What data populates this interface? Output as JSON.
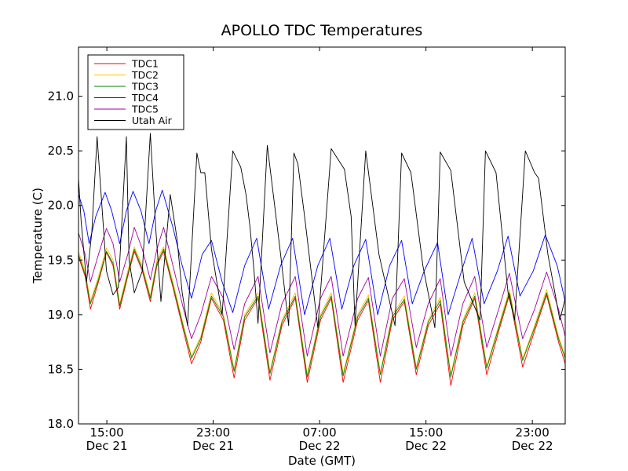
{
  "chart_data": {
    "type": "line",
    "title": "APOLLO TDC Temperatures",
    "xlabel": "Date (GMT)",
    "ylabel": "Temperature (C)",
    "ylim": [
      18.0,
      21.45
    ],
    "xlim_hours": [
      0,
      36.6
    ],
    "x_start": "Dec 21 12:52 GMT (approx.)",
    "grid": false,
    "legend_loc": "upper-left",
    "y_ticks": [
      {
        "value": 18.0,
        "label": "18.0"
      },
      {
        "value": 18.5,
        "label": "18.5"
      },
      {
        "value": 19.0,
        "label": "19.0"
      },
      {
        "value": 19.5,
        "label": "19.5"
      },
      {
        "value": 20.0,
        "label": "20.0"
      },
      {
        "value": 20.5,
        "label": "20.5"
      },
      {
        "value": 21.0,
        "label": "21.0"
      }
    ],
    "x_ticks": [
      {
        "hours": 2.13,
        "time": "15:00",
        "date": "Dec 21"
      },
      {
        "hours": 10.13,
        "time": "23:00",
        "date": "Dec 21"
      },
      {
        "hours": 18.13,
        "time": "07:00",
        "date": "Dec 22"
      },
      {
        "hours": 26.13,
        "time": "15:00",
        "date": "Dec 22"
      },
      {
        "hours": 34.13,
        "time": "23:00",
        "date": "Dec 22"
      }
    ],
    "series": [
      {
        "name": "TDC1",
        "color": "#ff0000",
        "x": [
          0,
          0.5,
          0.9,
          1.5,
          2.1,
          2.6,
          3.1,
          3.7,
          4.2,
          4.8,
          5.4,
          5.9,
          6.4,
          7.1,
          7.9,
          8.5,
          9.2,
          10.0,
          10.9,
          11.7,
          12.5,
          13.5,
          14.4,
          15.3,
          16.3,
          17.2,
          18.2,
          19.0,
          19.9,
          21.0,
          21.8,
          22.7,
          23.6,
          24.5,
          25.4,
          26.3,
          27.2,
          28.0,
          28.9,
          29.8,
          30.7,
          31.6,
          32.4,
          33.4,
          34.3,
          35.2,
          36.1,
          36.6
        ],
        "y": [
          19.53,
          19.35,
          19.05,
          19.3,
          19.57,
          19.45,
          19.05,
          19.35,
          19.58,
          19.4,
          19.12,
          19.45,
          19.58,
          19.25,
          18.85,
          18.55,
          18.75,
          19.15,
          18.95,
          18.42,
          18.95,
          19.15,
          18.4,
          18.9,
          19.15,
          18.38,
          18.95,
          19.15,
          18.38,
          18.95,
          19.13,
          18.38,
          18.95,
          19.12,
          18.45,
          18.9,
          19.1,
          18.35,
          18.9,
          19.15,
          18.45,
          18.85,
          19.18,
          18.52,
          18.85,
          19.18,
          18.75,
          18.55
        ]
      },
      {
        "name": "TDC2",
        "color": "#ffc000",
        "x": [
          0,
          0.5,
          0.9,
          1.5,
          2.1,
          2.6,
          3.1,
          3.7,
          4.2,
          4.8,
          5.4,
          5.9,
          6.4,
          7.1,
          7.9,
          8.5,
          9.2,
          10.0,
          10.9,
          11.7,
          12.5,
          13.5,
          14.4,
          15.3,
          16.3,
          17.2,
          18.2,
          19.0,
          19.9,
          21.0,
          21.8,
          22.7,
          23.6,
          24.5,
          25.4,
          26.3,
          27.2,
          28.0,
          28.9,
          29.8,
          30.7,
          31.6,
          32.4,
          33.4,
          34.3,
          35.2,
          36.1,
          36.6
        ],
        "y": [
          19.58,
          19.4,
          19.12,
          19.35,
          19.61,
          19.5,
          19.1,
          19.4,
          19.62,
          19.45,
          19.17,
          19.5,
          19.62,
          19.3,
          18.9,
          18.62,
          18.8,
          19.2,
          19.0,
          18.5,
          19.0,
          19.2,
          18.48,
          18.95,
          19.2,
          18.45,
          19.0,
          19.2,
          18.46,
          19.0,
          19.18,
          18.47,
          19.0,
          19.17,
          18.52,
          18.95,
          19.16,
          18.45,
          18.95,
          19.2,
          18.53,
          18.9,
          19.23,
          18.6,
          18.9,
          19.23,
          18.8,
          18.62
        ]
      },
      {
        "name": "TDC3",
        "color": "#008000",
        "x": [
          0,
          0.5,
          0.9,
          1.5,
          2.1,
          2.6,
          3.1,
          3.7,
          4.2,
          4.8,
          5.4,
          5.9,
          6.4,
          7.1,
          7.9,
          8.5,
          9.2,
          10.0,
          10.9,
          11.7,
          12.5,
          13.5,
          14.4,
          15.3,
          16.3,
          17.2,
          18.2,
          19.0,
          19.9,
          21.0,
          21.8,
          22.7,
          23.6,
          24.5,
          25.4,
          26.3,
          27.2,
          28.0,
          28.9,
          29.8,
          30.7,
          31.6,
          32.4,
          33.4,
          34.3,
          35.2,
          36.1,
          36.6
        ],
        "y": [
          19.55,
          19.37,
          19.1,
          19.32,
          19.58,
          19.47,
          19.08,
          19.37,
          19.6,
          19.42,
          19.15,
          19.47,
          19.6,
          19.27,
          18.88,
          18.6,
          18.78,
          19.17,
          18.98,
          18.48,
          18.98,
          19.17,
          18.46,
          18.93,
          19.17,
          18.43,
          18.98,
          19.17,
          18.44,
          18.98,
          19.15,
          18.45,
          18.98,
          19.14,
          18.5,
          18.93,
          19.13,
          18.43,
          18.93,
          19.17,
          18.51,
          18.88,
          19.2,
          18.58,
          18.88,
          19.2,
          18.78,
          18.6
        ]
      },
      {
        "name": "TDC4",
        "color": "#0000ff",
        "x": [
          0,
          0.4,
          0.8,
          1.3,
          2.0,
          2.5,
          3.1,
          3.6,
          4.1,
          4.7,
          5.3,
          5.8,
          6.3,
          7.1,
          7.8,
          8.5,
          9.3,
          10.0,
          10.8,
          11.6,
          12.5,
          13.4,
          14.3,
          15.2,
          16.1,
          17.0,
          18.0,
          18.9,
          19.8,
          20.7,
          21.6,
          22.5,
          23.4,
          24.3,
          25.1,
          26.0,
          27.0,
          27.8,
          28.8,
          29.6,
          30.5,
          31.5,
          32.3,
          33.2,
          34.2,
          35.1,
          36.0,
          36.6
        ],
        "y": [
          20.1,
          19.95,
          19.65,
          19.9,
          20.12,
          19.95,
          19.65,
          19.95,
          20.13,
          19.95,
          19.65,
          19.95,
          20.14,
          19.8,
          19.45,
          19.15,
          19.55,
          19.68,
          19.3,
          19.02,
          19.45,
          19.7,
          19.05,
          19.45,
          19.7,
          19.0,
          19.45,
          19.7,
          19.05,
          19.45,
          19.69,
          19.0,
          19.45,
          19.68,
          19.1,
          19.4,
          19.66,
          19.0,
          19.4,
          19.7,
          19.1,
          19.4,
          19.72,
          19.17,
          19.4,
          19.73,
          19.45,
          19.12
        ]
      },
      {
        "name": "TDC5",
        "color": "#a000a0",
        "x": [
          0,
          0.5,
          0.9,
          1.5,
          2.1,
          2.6,
          3.1,
          3.7,
          4.2,
          4.8,
          5.4,
          5.9,
          6.4,
          7.1,
          7.9,
          8.5,
          9.2,
          10.0,
          10.9,
          11.7,
          12.5,
          13.5,
          14.4,
          15.3,
          16.3,
          17.2,
          18.2,
          19.0,
          19.9,
          21.0,
          21.8,
          22.7,
          23.6,
          24.5,
          25.4,
          26.3,
          27.2,
          28.0,
          28.9,
          29.8,
          30.7,
          31.6,
          32.4,
          33.4,
          34.3,
          35.2,
          36.1,
          36.6
        ],
        "y": [
          19.75,
          19.55,
          19.3,
          19.55,
          19.79,
          19.65,
          19.3,
          19.55,
          19.8,
          19.6,
          19.32,
          19.6,
          19.8,
          19.45,
          19.05,
          18.78,
          19.0,
          19.35,
          19.15,
          18.68,
          19.1,
          19.35,
          18.65,
          19.1,
          19.35,
          18.62,
          19.15,
          19.35,
          18.62,
          19.15,
          19.34,
          18.62,
          19.15,
          19.33,
          18.7,
          19.1,
          19.33,
          18.62,
          19.1,
          19.35,
          18.7,
          19.05,
          19.38,
          18.78,
          19.05,
          19.39,
          19.05,
          18.8
        ]
      },
      {
        "name": "Utah Air",
        "color": "#000000",
        "x": [
          0,
          0.2,
          0.6,
          1.0,
          1.4,
          2.1,
          2.6,
          3.0,
          3.6,
          3.8,
          4.2,
          4.8,
          5.4,
          5.8,
          6.2,
          6.9,
          7.4,
          7.8,
          8.2,
          8.9,
          9.2,
          9.5,
          10.0,
          10.8,
          11.6,
          12.2,
          12.6,
          12.9,
          13.2,
          13.5,
          14.2,
          15.2,
          15.8,
          16.2,
          16.5,
          17.0,
          18.0,
          19.0,
          20.0,
          20.5,
          20.8,
          21.6,
          22.6,
          23.8,
          24.3,
          25.0,
          25.9,
          26.8,
          27.2,
          28.0,
          29.0,
          30.2,
          30.6,
          31.4,
          32.3,
          32.8,
          33.6,
          34.3,
          34.6,
          35.3,
          36.2,
          36.6
        ],
        "y": [
          20.25,
          19.85,
          19.3,
          19.75,
          20.63,
          19.4,
          19.18,
          19.25,
          20.63,
          19.5,
          19.2,
          19.4,
          20.66,
          19.8,
          19.12,
          20.1,
          19.7,
          19.2,
          18.9,
          20.48,
          20.3,
          20.3,
          19.6,
          19.0,
          20.5,
          20.35,
          20.1,
          19.8,
          19.4,
          18.92,
          20.55,
          19.55,
          18.9,
          20.48,
          20.38,
          19.9,
          18.88,
          20.52,
          20.33,
          19.9,
          18.9,
          20.5,
          19.55,
          18.9,
          20.48,
          20.3,
          19.45,
          18.88,
          20.49,
          20.32,
          19.3,
          18.95,
          20.5,
          20.3,
          19.2,
          18.95,
          20.5,
          20.3,
          20.25,
          19.55,
          18.95,
          19.15
        ]
      }
    ]
  }
}
